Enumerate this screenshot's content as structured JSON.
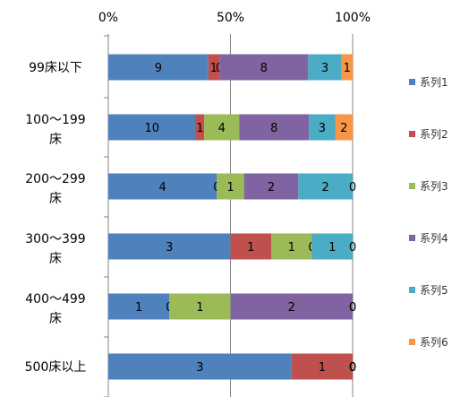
{
  "chart_data": {
    "type": "bar",
    "orientation": "horizontal",
    "stacked": "percent",
    "categories": [
      [
        "99床以下"
      ],
      [
        "100～199",
        "床"
      ],
      [
        "200～299",
        "床"
      ],
      [
        "300～399",
        "床"
      ],
      [
        "400～499",
        "床"
      ],
      [
        "500床以上"
      ]
    ],
    "series": [
      {
        "name": "系列1",
        "color": "#4F81BD",
        "values": [
          9,
          10,
          4,
          3,
          1,
          3
        ]
      },
      {
        "name": "系列2",
        "color": "#C0504D",
        "values": [
          1,
          1,
          0,
          1,
          0,
          1
        ]
      },
      {
        "name": "系列3",
        "color": "#9BBB59",
        "values": [
          0,
          4,
          1,
          1,
          1,
          0
        ]
      },
      {
        "name": "系列4",
        "color": "#8064A2",
        "values": [
          8,
          8,
          2,
          0,
          2,
          0
        ]
      },
      {
        "name": "系列5",
        "color": "#4BACC6",
        "values": [
          3,
          3,
          2,
          1,
          0,
          0
        ]
      },
      {
        "name": "系列6",
        "color": "#F79646",
        "values": [
          1,
          2,
          0,
          0,
          0,
          0
        ]
      }
    ],
    "x_ticks": [
      "0%",
      "50%",
      "100%"
    ],
    "xlim": [
      0,
      1
    ],
    "grid": "vertical",
    "legend": "right"
  }
}
